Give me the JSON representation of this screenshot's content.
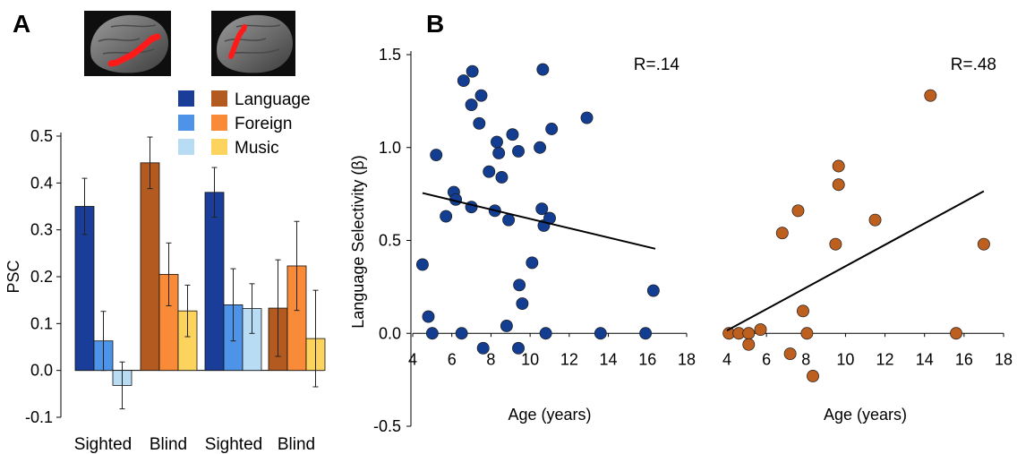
{
  "panel_labels": {
    "a": "A",
    "b": "B"
  },
  "chart_data": [
    {
      "type": "bar",
      "ylabel": "PSC",
      "ylim": [
        -0.1,
        0.5
      ],
      "yticks": [
        "0.5",
        "0.4",
        "0.3",
        "0.2",
        "0.1",
        "0.0",
        "-0.1"
      ],
      "grid": false,
      "legend_placement": "top-right",
      "groups": [
        {
          "label": "Sighted",
          "bars": [
            {
              "series": "Language",
              "value": 0.35,
              "err": 0.06,
              "color": "#1a3d99"
            },
            {
              "series": "Foreign",
              "value": 0.063,
              "err": 0.063,
              "color": "#4d94e8"
            },
            {
              "series": "Music",
              "value": -0.032,
              "err": 0.05,
              "color": "#b9dcf5"
            }
          ]
        },
        {
          "label": "Blind",
          "bars": [
            {
              "series": "Language",
              "value": 0.443,
              "err": 0.055,
              "color": "#b25a1f"
            },
            {
              "series": "Foreign",
              "value": 0.205,
              "err": 0.067,
              "color": "#f88a38"
            },
            {
              "series": "Music",
              "value": 0.127,
              "err": 0.055,
              "color": "#fcd35c"
            }
          ]
        },
        {
          "label": "Sighted",
          "bars": [
            {
              "series": "Language",
              "value": 0.38,
              "err": 0.053,
              "color": "#1a3d99"
            },
            {
              "series": "Foreign",
              "value": 0.14,
              "err": 0.077,
              "color": "#4d94e8"
            },
            {
              "series": "Music",
              "value": 0.132,
              "err": 0.053,
              "color": "#b9dcf5"
            }
          ]
        },
        {
          "label": "Blind",
          "bars": [
            {
              "series": "Language",
              "value": 0.133,
              "err": 0.103,
              "color": "#b25a1f"
            },
            {
              "series": "Foreign",
              "value": 0.223,
              "err": 0.095,
              "color": "#f88a38"
            },
            {
              "series": "Music",
              "value": 0.068,
              "err": 0.103,
              "color": "#fcd35c"
            }
          ]
        }
      ],
      "legend": [
        {
          "label": "Language",
          "colors": [
            "#1a3d99",
            "#b25a1f"
          ]
        },
        {
          "label": "Foreign",
          "colors": [
            "#4d94e8",
            "#f88a38"
          ]
        },
        {
          "label": "Music",
          "colors": [
            "#b9dcf5",
            "#fcd35c"
          ]
        }
      ]
    },
    {
      "type": "scatter",
      "ylabel": "Language Selectivity (β)",
      "xlabel": "Age (years)",
      "ylim": [
        -0.5,
        1.5
      ],
      "yticks": [
        "1.5",
        "1.0",
        "0.5",
        "0.0",
        "-0.5"
      ],
      "xlim": [
        4,
        18
      ],
      "xticks": [
        "4",
        "6",
        "8",
        "10",
        "12",
        "14",
        "16",
        "18"
      ],
      "grid": false,
      "annotation": "R=.14",
      "color": "#123d91",
      "points": [
        [
          4.5,
          0.37
        ],
        [
          4.8,
          0.09
        ],
        [
          5.0,
          0.0
        ],
        [
          5.2,
          0.96
        ],
        [
          5.7,
          0.63
        ],
        [
          6.1,
          0.76
        ],
        [
          6.2,
          0.72
        ],
        [
          6.5,
          0.0
        ],
        [
          6.6,
          1.36
        ],
        [
          7.0,
          1.23
        ],
        [
          7.05,
          1.41
        ],
        [
          7.0,
          0.68
        ],
        [
          7.4,
          1.13
        ],
        [
          7.5,
          1.28
        ],
        [
          7.6,
          -0.08
        ],
        [
          7.9,
          0.87
        ],
        [
          8.2,
          0.66
        ],
        [
          8.3,
          1.03
        ],
        [
          8.4,
          0.97
        ],
        [
          8.55,
          0.84
        ],
        [
          8.8,
          0.04
        ],
        [
          8.9,
          0.61
        ],
        [
          9.1,
          1.07
        ],
        [
          9.4,
          -0.08
        ],
        [
          9.4,
          0.98
        ],
        [
          9.45,
          0.26
        ],
        [
          9.6,
          0.16
        ],
        [
          10.1,
          0.38
        ],
        [
          10.5,
          1.0
        ],
        [
          10.6,
          0.67
        ],
        [
          10.65,
          1.42
        ],
        [
          10.7,
          0.58
        ],
        [
          10.8,
          0.0
        ],
        [
          11.0,
          0.62
        ],
        [
          11.1,
          1.1
        ],
        [
          12.9,
          1.16
        ],
        [
          13.6,
          0.0
        ],
        [
          15.9,
          0.0
        ],
        [
          16.3,
          0.23
        ]
      ],
      "fit": [
        [
          4.5,
          0.755
        ],
        [
          16.4,
          0.455
        ]
      ]
    },
    {
      "type": "scatter",
      "xlabel": "Age (years)",
      "ylim": [
        -0.5,
        1.5
      ],
      "xlim": [
        4,
        18
      ],
      "xticks": [
        "4",
        "6",
        "8",
        "10",
        "12",
        "14",
        "16",
        "18"
      ],
      "grid": false,
      "annotation": "R=.48",
      "color": "#bd5f1f",
      "points": [
        [
          4.1,
          0.0
        ],
        [
          4.6,
          0.0
        ],
        [
          5.1,
          0.0
        ],
        [
          5.1,
          -0.06
        ],
        [
          5.7,
          0.02
        ],
        [
          6.8,
          0.54
        ],
        [
          7.2,
          -0.11
        ],
        [
          7.6,
          0.66
        ],
        [
          7.85,
          0.12
        ],
        [
          8.05,
          0.0
        ],
        [
          8.35,
          -0.23
        ],
        [
          9.5,
          0.48
        ],
        [
          9.65,
          0.8
        ],
        [
          9.65,
          0.9
        ],
        [
          11.5,
          0.61
        ],
        [
          14.3,
          1.28
        ],
        [
          15.6,
          0.0
        ],
        [
          17.0,
          0.48
        ]
      ],
      "fit": [
        [
          4.0,
          0.015
        ],
        [
          17.0,
          0.765
        ]
      ]
    }
  ]
}
